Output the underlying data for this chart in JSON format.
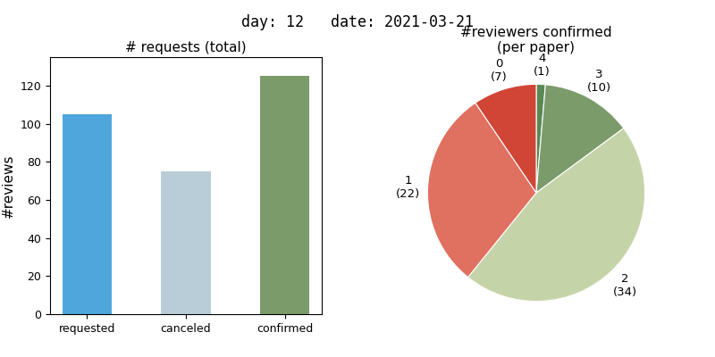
{
  "suptitle": "day: 12   date: 2021-03-21",
  "bar_title": "# requests (total)",
  "bar_categories": [
    "requested",
    "canceled",
    "confirmed"
  ],
  "bar_values": [
    105,
    75,
    125
  ],
  "bar_colors": [
    "#4EA6DC",
    "#B8CDD8",
    "#7B9B6B"
  ],
  "bar_ylabel": "#reviews",
  "pie_title": "#reviewers confirmed\n(per paper)",
  "pie_order_labels": [
    "4",
    "3",
    "2",
    "1",
    "0"
  ],
  "pie_order_counts": [
    1,
    10,
    34,
    22,
    7
  ],
  "pie_colors_ordered": [
    "#5A8855",
    "#7B9B6B",
    "#C5D4A8",
    "#E07060",
    "#D04535"
  ]
}
